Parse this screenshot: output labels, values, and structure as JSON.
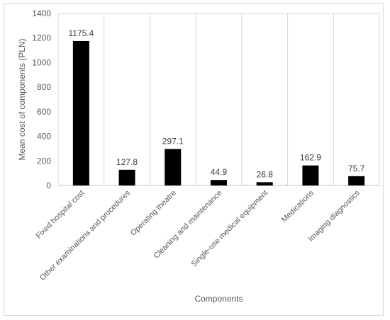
{
  "chart_data": {
    "type": "bar",
    "title": "",
    "xlabel": "Components",
    "ylabel": "Mean cost of components (PLN)",
    "ylim": [
      0,
      1400
    ],
    "yticks": [
      0,
      200,
      400,
      600,
      800,
      1000,
      1200,
      1400
    ],
    "grid": "vertical category gridlines",
    "legend": "none",
    "bar_color": "#000000",
    "categories": [
      "Fixed hospital cost",
      "Other examinations and procedures",
      "Operating theatre",
      "Cleaning and maintenance",
      "Single-use medical equipment",
      "Medications",
      "Imaging diagnostics"
    ],
    "values": [
      1175.4,
      127.8,
      297.1,
      44.9,
      26.8,
      162.9,
      75.7
    ],
    "data_labels": [
      "1175.4",
      "127.8",
      "297.1",
      "44.9",
      "26.8",
      "162.9",
      "75.7"
    ]
  }
}
